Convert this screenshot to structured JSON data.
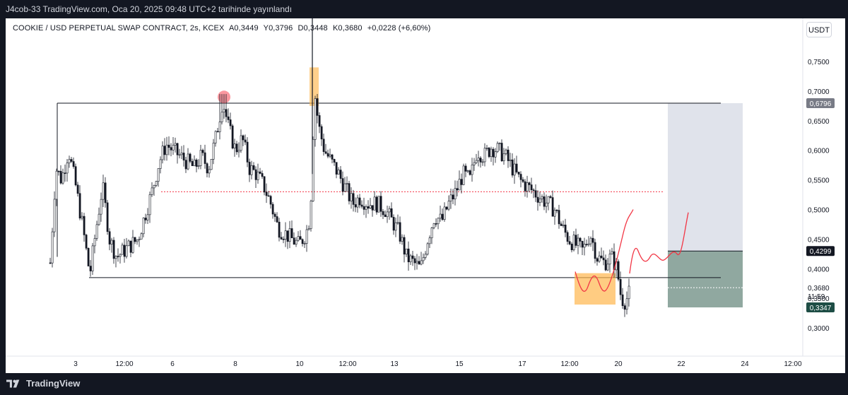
{
  "header": {
    "publish_line": "J4cob-33 TradingView.com, Oca 20, 2025 09:48 UTC+2 tarihinde yayınlandı"
  },
  "legend": {
    "symbol": "COOKIE / USD PERPETUAL SWAP CONTRACT, 2s, KCEX",
    "open": "A0,3449",
    "high": "Y0,3796",
    "low": "D0,3448",
    "close": "K0,3680",
    "change": "+0,0228 (+6,60%)"
  },
  "currency_button": "USDT",
  "price_axis": {
    "ticks": [
      "0,7500",
      "0,7000",
      "0,6500",
      "0,6000",
      "0,5500",
      "0,5000",
      "0,4500",
      "0,4000",
      "0,3500",
      "0,3000"
    ],
    "tick_values": [
      0.75,
      0.7,
      0.65,
      0.6,
      0.55,
      0.5,
      0.45,
      0.4,
      0.35,
      0.3
    ],
    "label_target": "0,6796",
    "label_entry": "0,4299",
    "label_current": "0,3680",
    "label_countdown": "11:59",
    "label_stop": "0,3347"
  },
  "time_axis": {
    "labels": [
      "3",
      "12:00",
      "6",
      "8",
      "10",
      "12:00",
      "13",
      "15",
      "17",
      "12:00",
      "20",
      "22",
      "24",
      "12:00"
    ]
  },
  "levels": {
    "range_high": 0.6796,
    "range_low": 0.385,
    "mid_dotted": 0.53,
    "position_entry": 0.4299,
    "position_target": 0.6796,
    "position_stop": 0.3347,
    "current_price": 0.368
  },
  "colors": {
    "up_candle": "#ffffff",
    "down_candle": "#131722",
    "mid_line": "#f23645",
    "forecast_line": "#f23645",
    "highlight_orange": "#ffb74d",
    "highlight_red_circle": "#f7525f",
    "target_zone": "#e0e3eb",
    "stop_zone": "#90a8a0",
    "bar_bg": "#131722"
  },
  "footer": {
    "brand": "TradingView"
  }
}
